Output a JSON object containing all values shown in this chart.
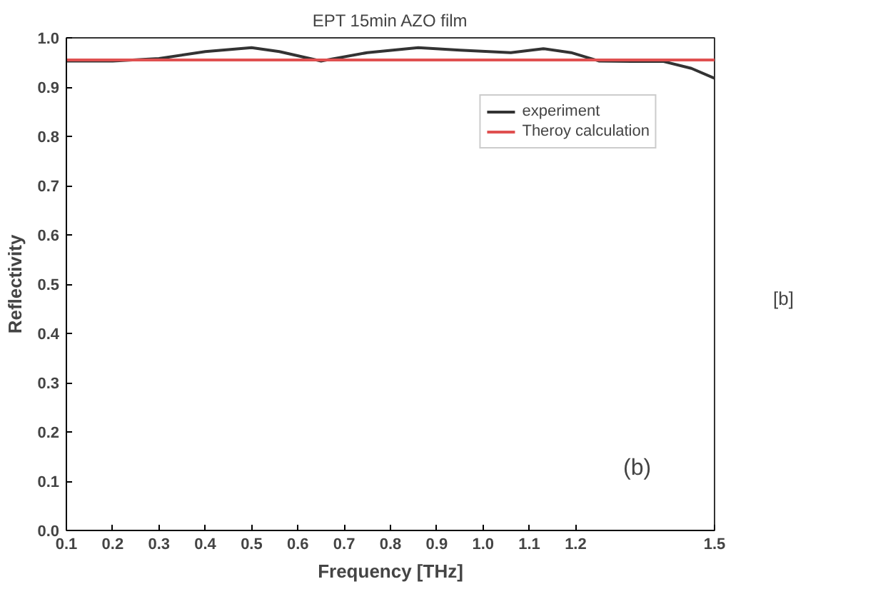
{
  "chart_data": {
    "type": "line",
    "title": "EPT 15min AZO film",
    "xlabel": "Frequency [THz]",
    "ylabel": "Reflectivity",
    "xlim": [
      0.1,
      1.5
    ],
    "ylim": [
      0,
      1.0
    ],
    "xticks": [
      0.1,
      0.2,
      0.3,
      0.4,
      0.5,
      0.6,
      0.7,
      0.8,
      0.9,
      {
        "value": 1,
        "label": "1.0"
      },
      1.1,
      1.2,
      1.5
    ],
    "yticks": [
      {
        "value": 0,
        "label": "0.0"
      },
      0.1,
      0.2,
      0.3,
      0.4,
      0.5,
      0.6,
      0.7,
      0.8,
      0.9,
      {
        "value": 1,
        "label": "1.0"
      }
    ],
    "series": [
      {
        "name": "experiment",
        "color": "#333333",
        "x": [
          0.1,
          0.2,
          0.3,
          0.4,
          0.5,
          0.56,
          0.65,
          0.75,
          0.86,
          0.95,
          1.06,
          1.13,
          1.19,
          1.25,
          1.32,
          1.39,
          1.45,
          1.5
        ],
        "values": [
          0.953,
          0.953,
          0.958,
          0.972,
          0.98,
          0.972,
          0.953,
          0.97,
          0.98,
          0.975,
          0.97,
          0.978,
          0.97,
          0.953,
          0.952,
          0.952,
          0.938,
          0.918
        ]
      },
      {
        "name": "Theroy calculation",
        "color": "#e05050",
        "x": [
          0.1,
          1.5
        ],
        "values": [
          0.955,
          0.955
        ]
      }
    ],
    "legend": "top right",
    "grid": false,
    "annotations": [
      "(b)",
      "[b]"
    ]
  }
}
